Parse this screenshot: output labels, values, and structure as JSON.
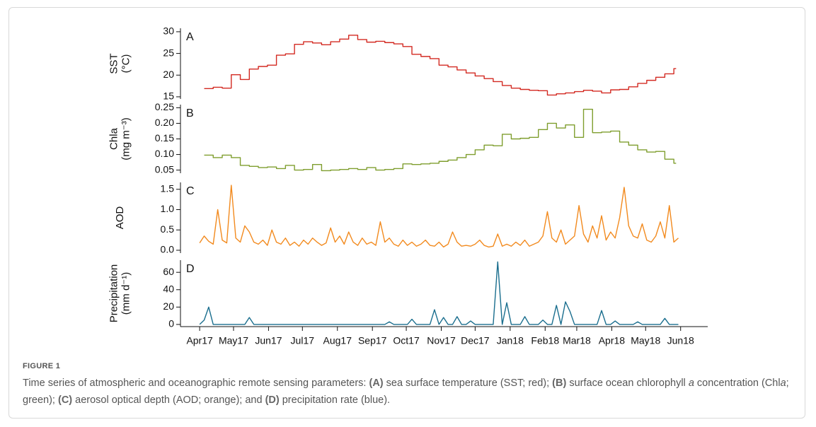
{
  "chart_data": [
    {
      "type": "line",
      "drawstyle": "steps-post",
      "panel_label": "A",
      "ylabel": [
        "SST",
        "(°C)"
      ],
      "color": "#d32a22",
      "xlim": [
        -17,
        450
      ],
      "ylim": [
        14.5,
        30.8
      ],
      "yticks": [
        15,
        20,
        25,
        30
      ],
      "x": [
        4,
        12,
        20,
        28,
        36,
        44,
        52,
        60,
        68,
        76,
        84,
        92,
        100,
        108,
        116,
        124,
        132,
        140,
        148,
        156,
        164,
        172,
        180,
        188,
        196,
        204,
        212,
        220,
        228,
        236,
        244,
        252,
        260,
        268,
        276,
        284,
        292,
        300,
        308,
        316,
        324,
        332,
        340,
        348,
        356,
        364,
        372,
        380,
        388,
        396,
        404,
        412,
        420
      ],
      "values": [
        16.9,
        17.2,
        17.0,
        20.1,
        19.0,
        21.4,
        22.0,
        22.3,
        24.6,
        24.9,
        27.1,
        27.7,
        27.4,
        27.0,
        27.7,
        28.3,
        29.2,
        28.2,
        27.6,
        27.8,
        27.5,
        27.2,
        26.6,
        24.8,
        24.3,
        23.8,
        22.3,
        21.9,
        21.2,
        20.5,
        19.8,
        19.2,
        18.5,
        17.6,
        17.0,
        16.7,
        16.5,
        16.4,
        15.4,
        15.7,
        15.9,
        16.2,
        16.5,
        16.3,
        15.9,
        16.6,
        16.7,
        17.3,
        18.1,
        18.8,
        19.5,
        20.3,
        21.5
      ]
    },
    {
      "type": "line",
      "drawstyle": "steps-post",
      "panel_label": "B",
      "ylabel": [
        "Chla",
        "(mg m⁻³)"
      ],
      "color": "#7f9e2e",
      "xlim": [
        -17,
        450
      ],
      "ylim": [
        0.04,
        0.26
      ],
      "yticks": [
        0.05,
        {
          "value": 0.1,
          "label": "0.10"
        },
        0.15,
        {
          "value": 0.2,
          "label": "0.20"
        },
        0.25
      ],
      "x": [
        4,
        12,
        20,
        28,
        36,
        44,
        52,
        60,
        68,
        76,
        84,
        92,
        100,
        108,
        116,
        124,
        132,
        140,
        148,
        156,
        164,
        172,
        180,
        188,
        196,
        204,
        212,
        220,
        228,
        236,
        244,
        252,
        260,
        268,
        276,
        284,
        292,
        300,
        308,
        316,
        324,
        332,
        340,
        348,
        356,
        364,
        372,
        380,
        388,
        396,
        404,
        412,
        420
      ],
      "values": [
        0.098,
        0.09,
        0.098,
        0.09,
        0.065,
        0.062,
        0.058,
        0.06,
        0.055,
        0.065,
        0.05,
        0.052,
        0.068,
        0.048,
        0.05,
        0.052,
        0.055,
        0.052,
        0.058,
        0.05,
        0.052,
        0.055,
        0.07,
        0.068,
        0.07,
        0.072,
        0.078,
        0.082,
        0.09,
        0.1,
        0.115,
        0.13,
        0.128,
        0.165,
        0.15,
        0.152,
        0.155,
        0.18,
        0.2,
        0.185,
        0.195,
        0.155,
        0.245,
        0.17,
        0.172,
        0.175,
        0.14,
        0.13,
        0.115,
        0.108,
        0.11,
        0.085,
        0.072
      ]
    },
    {
      "type": "line",
      "panel_label": "C",
      "ylabel": [
        "AOD"
      ],
      "color": "#f28a1e",
      "xlim": [
        -17,
        450
      ],
      "ylim": [
        -0.07,
        1.67
      ],
      "yticks": [
        {
          "value": 0,
          "label": "0.0"
        },
        0.5,
        {
          "value": 1,
          "label": "1.0"
        },
        1.5
      ],
      "x": [
        0,
        4,
        8,
        12,
        16,
        20,
        24,
        28,
        32,
        36,
        40,
        44,
        48,
        52,
        56,
        60,
        64,
        68,
        72,
        76,
        80,
        84,
        88,
        92,
        96,
        100,
        104,
        108,
        112,
        116,
        120,
        124,
        128,
        132,
        136,
        140,
        144,
        148,
        152,
        156,
        160,
        164,
        168,
        172,
        176,
        180,
        184,
        188,
        192,
        196,
        200,
        204,
        208,
        212,
        216,
        220,
        224,
        228,
        232,
        236,
        240,
        244,
        248,
        252,
        256,
        260,
        264,
        268,
        272,
        276,
        280,
        284,
        288,
        292,
        296,
        300,
        304,
        308,
        312,
        316,
        320,
        324,
        328,
        332,
        336,
        340,
        344,
        348,
        352,
        356,
        360,
        364,
        368,
        372,
        376,
        380,
        384,
        388,
        392,
        396,
        400,
        404,
        408,
        412,
        416,
        420,
        424
      ],
      "values": [
        0.18,
        0.35,
        0.22,
        0.15,
        1.0,
        0.25,
        0.18,
        1.6,
        0.3,
        0.2,
        0.6,
        0.45,
        0.2,
        0.15,
        0.25,
        0.12,
        0.5,
        0.2,
        0.15,
        0.3,
        0.12,
        0.2,
        0.1,
        0.25,
        0.15,
        0.3,
        0.2,
        0.12,
        0.18,
        0.55,
        0.2,
        0.35,
        0.15,
        0.45,
        0.2,
        0.12,
        0.3,
        0.15,
        0.2,
        0.12,
        0.7,
        0.2,
        0.3,
        0.15,
        0.1,
        0.25,
        0.12,
        0.2,
        0.1,
        0.15,
        0.25,
        0.12,
        0.1,
        0.2,
        0.08,
        0.15,
        0.45,
        0.2,
        0.1,
        0.12,
        0.1,
        0.15,
        0.25,
        0.12,
        0.08,
        0.1,
        0.4,
        0.1,
        0.15,
        0.1,
        0.2,
        0.12,
        0.25,
        0.1,
        0.15,
        0.2,
        0.35,
        0.95,
        0.3,
        0.2,
        0.5,
        0.15,
        0.25,
        0.35,
        1.1,
        0.4,
        0.2,
        0.6,
        0.3,
        0.85,
        0.25,
        0.45,
        0.3,
        0.8,
        1.55,
        0.6,
        0.35,
        0.3,
        0.65,
        0.25,
        0.2,
        0.35,
        0.7,
        0.3,
        1.1,
        0.2,
        0.3
      ]
    },
    {
      "type": "line",
      "panel_label": "D",
      "ylabel": [
        "Precipitation",
        "(mm d⁻¹)"
      ],
      "color": "#1a6e8e",
      "xlim": [
        -17,
        450
      ],
      "ylim": [
        -2.5,
        74
      ],
      "yticks": [
        0,
        20,
        40,
        60
      ],
      "xticks": [
        {
          "value": 0,
          "label": "Apr17"
        },
        {
          "value": 30,
          "label": "May17"
        },
        {
          "value": 61,
          "label": "Jun17"
        },
        {
          "value": 91,
          "label": "Jul17"
        },
        {
          "value": 122,
          "label": "Aug17"
        },
        {
          "value": 153,
          "label": "Sep17"
        },
        {
          "value": 183,
          "label": "Oct17"
        },
        {
          "value": 214,
          "label": "Nov17"
        },
        {
          "value": 244,
          "label": "Dec17"
        },
        {
          "value": 275,
          "label": "Jan18"
        },
        {
          "value": 306,
          "label": "Feb18"
        },
        {
          "value": 334,
          "label": "Mar18"
        },
        {
          "value": 365,
          "label": "Apr18"
        },
        {
          "value": 395,
          "label": "May18"
        },
        {
          "value": 426,
          "label": "Jun18"
        }
      ],
      "x": [
        0,
        4,
        8,
        12,
        16,
        20,
        24,
        28,
        32,
        36,
        40,
        44,
        48,
        52,
        56,
        60,
        64,
        68,
        72,
        76,
        80,
        84,
        88,
        92,
        96,
        100,
        104,
        108,
        112,
        116,
        120,
        124,
        128,
        132,
        136,
        140,
        144,
        148,
        152,
        156,
        160,
        164,
        168,
        172,
        176,
        180,
        184,
        188,
        192,
        196,
        200,
        204,
        208,
        212,
        216,
        220,
        224,
        228,
        232,
        236,
        240,
        244,
        248,
        252,
        256,
        260,
        264,
        268,
        272,
        276,
        280,
        284,
        288,
        292,
        296,
        300,
        304,
        308,
        312,
        316,
        320,
        324,
        328,
        332,
        336,
        340,
        344,
        348,
        352,
        356,
        360,
        364,
        368,
        372,
        376,
        380,
        384,
        388,
        392,
        396,
        400,
        404,
        408,
        412,
        416,
        420,
        424
      ],
      "values": [
        0,
        5,
        20,
        0,
        0,
        0,
        0,
        0,
        0,
        0,
        0,
        8,
        0,
        0,
        0,
        0,
        0,
        0,
        0,
        0,
        0,
        0,
        0,
        0,
        0,
        0,
        0,
        0,
        0,
        0,
        0,
        0,
        0,
        0,
        0,
        0,
        0,
        0,
        0,
        0,
        0,
        0,
        3,
        0,
        0,
        0,
        0,
        6,
        0,
        0,
        0,
        0,
        17,
        0,
        8,
        0,
        0,
        9,
        0,
        0,
        4,
        0,
        0,
        0,
        0,
        0,
        72,
        0,
        25,
        0,
        0,
        0,
        9,
        0,
        0,
        0,
        5,
        0,
        0,
        22,
        0,
        26,
        15,
        0,
        0,
        0,
        0,
        0,
        0,
        16,
        0,
        0,
        4,
        0,
        0,
        0,
        0,
        3,
        0,
        0,
        0,
        0,
        0,
        7,
        0,
        0,
        0
      ]
    }
  ],
  "caption": {
    "label": "FIGURE 1",
    "parts": [
      "Time series of atmospheric and oceanographic remote sensing parameters: ",
      "(A)",
      " sea surface temperature (SST; red); ",
      "(B)",
      " surface ocean chlorophyll ",
      "a",
      " concentration (Chl",
      "a",
      "; green); ",
      "(C)",
      " aerosol optical depth (AOD; orange); and ",
      "(D)",
      " precipitation rate (blue)."
    ]
  }
}
